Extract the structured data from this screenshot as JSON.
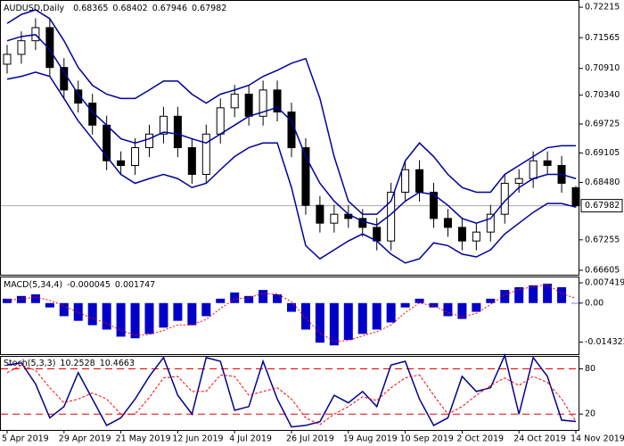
{
  "chart_data": [
    {
      "type": "candlestick",
      "title": "AUDUSD,Daily",
      "categories": [
        "5 Apr 2019",
        null,
        null,
        null,
        "29 Apr 2019",
        null,
        null,
        null,
        "21 May 2019",
        null,
        null,
        null,
        "12 Jun 2019",
        null,
        null,
        null,
        "4 Jul 2019",
        null,
        null,
        null,
        "26 Jul 2019",
        null,
        null,
        null,
        "19 Aug 2019",
        null,
        null,
        null,
        "10 Sep 2019",
        null,
        null,
        null,
        "2 Oct 2019",
        null,
        null,
        null,
        "24 Oct 2019",
        null,
        null,
        null,
        "14 Nov 2019"
      ],
      "open": [
        0.71,
        0.7121,
        0.715,
        0.7178,
        0.7093,
        0.7045,
        0.7017,
        0.697,
        0.6894,
        0.6884,
        0.6922,
        0.6951,
        0.6989,
        0.6922,
        0.6865,
        0.6951,
        0.7007,
        0.7036,
        0.6989,
        0.7045,
        0.6998,
        0.6922,
        0.6799,
        0.6761,
        0.678,
        0.6771,
        0.6752,
        0.6723,
        0.6827,
        0.6875,
        0.6827,
        0.6771,
        0.6752,
        0.6723,
        0.6742,
        0.678,
        0.6846,
        0.6856,
        0.6894,
        0.6884,
        0.68365
      ],
      "high": [
        0.7141,
        0.717,
        0.7198,
        0.7198,
        0.7113,
        0.7065,
        0.7037,
        0.699,
        0.6914,
        0.6942,
        0.6971,
        0.7009,
        0.7009,
        0.6942,
        0.6971,
        0.7027,
        0.7056,
        0.7056,
        0.7065,
        0.7065,
        0.7018,
        0.6942,
        0.6819,
        0.68,
        0.68,
        0.6791,
        0.6772,
        0.6847,
        0.6895,
        0.6895,
        0.6847,
        0.6791,
        0.6772,
        0.6762,
        0.68,
        0.6866,
        0.6876,
        0.6914,
        0.6914,
        0.6904,
        0.68402
      ],
      "low": [
        0.708,
        0.7101,
        0.713,
        0.7073,
        0.7025,
        0.6997,
        0.695,
        0.6874,
        0.6864,
        0.6864,
        0.6902,
        0.6931,
        0.6902,
        0.6845,
        0.6845,
        0.6931,
        0.6987,
        0.6969,
        0.6969,
        0.6978,
        0.6902,
        0.6779,
        0.6741,
        0.6741,
        0.6751,
        0.6732,
        0.6703,
        0.6703,
        0.6807,
        0.6807,
        0.6751,
        0.6732,
        0.6703,
        0.6703,
        0.6722,
        0.676,
        0.6826,
        0.6836,
        0.6864,
        0.6826,
        0.67946
      ],
      "close": [
        0.7121,
        0.715,
        0.7178,
        0.7093,
        0.7045,
        0.7017,
        0.697,
        0.6894,
        0.6884,
        0.6922,
        0.6951,
        0.6989,
        0.6922,
        0.6865,
        0.6951,
        0.7007,
        0.7036,
        0.6989,
        0.7045,
        0.6998,
        0.6922,
        0.6799,
        0.6761,
        0.678,
        0.6771,
        0.6752,
        0.6723,
        0.6827,
        0.6875,
        0.6827,
        0.6771,
        0.6752,
        0.6723,
        0.6742,
        0.678,
        0.6846,
        0.6856,
        0.6894,
        0.6884,
        0.6846,
        0.67982
      ],
      "up_color": "#ffffff",
      "down_color": "#000000",
      "series": [
        {
          "color": "#0000a0",
          "values": [
            0.7187,
            0.7206,
            0.7216,
            0.7197,
            0.715,
            0.7093,
            0.7055,
            0.7036,
            0.7027,
            0.7027,
            0.7045,
            0.7064,
            0.7064,
            0.7036,
            0.7017,
            0.7036,
            0.7045,
            0.7055,
            0.7074,
            0.7087,
            0.7102,
            0.7112,
            0.7027,
            0.6903,
            0.6808,
            0.678,
            0.678,
            0.6808,
            0.6894,
            0.6932,
            0.6903,
            0.6865,
            0.6837,
            0.6827,
            0.6827,
            0.6865,
            0.6884,
            0.6903,
            0.6922,
            0.6926,
            0.6926
          ]
        },
        {
          "color": "#0000a0",
          "values": [
            0.715,
            0.7159,
            0.7163,
            0.7131,
            0.7083,
            0.7036,
            0.6998,
            0.697,
            0.6941,
            0.6932,
            0.6941,
            0.6955,
            0.6951,
            0.6941,
            0.6932,
            0.6951,
            0.697,
            0.6989,
            0.6998,
            0.7008,
            0.6979,
            0.6903,
            0.6846,
            0.6808,
            0.678,
            0.6765,
            0.6757,
            0.678,
            0.6808,
            0.6827,
            0.6822,
            0.6799,
            0.6771,
            0.6761,
            0.6771,
            0.6808,
            0.6837,
            0.6856,
            0.6865,
            0.6865,
            0.6856
          ]
        },
        {
          "color": "#0000a0",
          "values": [
            0.7068,
            0.7074,
            0.7083,
            0.7074,
            0.7027,
            0.6979,
            0.6941,
            0.6903,
            0.6865,
            0.6846,
            0.6856,
            0.6865,
            0.6856,
            0.6837,
            0.6846,
            0.6875,
            0.6903,
            0.6922,
            0.6932,
            0.6932,
            0.6837,
            0.6713,
            0.6685,
            0.6704,
            0.6723,
            0.6738,
            0.6723,
            0.6695,
            0.6676,
            0.6685,
            0.6719,
            0.6713,
            0.6695,
            0.6689,
            0.6704,
            0.6738,
            0.6761,
            0.6784,
            0.6803,
            0.6803,
            0.6795
          ]
        }
      ],
      "ylim": [
        0.6651,
        0.7235
      ],
      "yticks": [
        0.72215,
        0.71565,
        {
          "value": 0.7091,
          "label": "0.70910"
        },
        {
          "value": 0.7034,
          "label": "0.70340"
        },
        0.69725,
        0.69105,
        {
          "value": 0.6848,
          "label": "0.68480"
        },
        0.67255,
        0.66605
      ]
    },
    {
      "type": "bar",
      "title": "MACD(5,34,4)",
      "color": "#0000c8",
      "values": [
        0.0016,
        0.0026,
        0.0032,
        -0.0016,
        -0.0048,
        -0.0065,
        -0.0081,
        -0.0097,
        -0.0123,
        -0.0129,
        -0.0113,
        -0.009,
        -0.0065,
        -0.0081,
        -0.0048,
        0.0016,
        0.0039,
        0.0026,
        0.0048,
        0.0032,
        -0.0032,
        -0.0097,
        -0.0145,
        -0.0155,
        -0.0135,
        -0.0113,
        -0.0097,
        -0.0071,
        -0.0016,
        0.0016,
        -0.0016,
        -0.0048,
        -0.0058,
        -0.0032,
        0.0016,
        0.0048,
        0.0058,
        0.0065,
        0.0071,
        0.0058,
        -4.5e-05
      ],
      "series": [
        {
          "color": "#ff0000",
          "values": [
            0.001,
            0.0015,
            0.0022,
            0.001,
            -0.001,
            -0.0035,
            -0.0055,
            -0.0075,
            -0.01,
            -0.0118,
            -0.0115,
            -0.01,
            -0.008,
            -0.008,
            -0.006,
            -0.002,
            0.0015,
            0.002,
            0.0035,
            0.0033,
            0.0005,
            -0.0055,
            -0.011,
            -0.014,
            -0.0137,
            -0.012,
            -0.0105,
            -0.008,
            -0.0035,
            0.0,
            -0.001,
            -0.0035,
            -0.005,
            -0.0038,
            -0.0005,
            0.003,
            0.005,
            0.006,
            0.0068,
            0.0035,
            0.001747
          ]
        }
      ],
      "ylim": [
        -0.0187,
        0.0094
      ],
      "yticks": [
        0.007419,
        {
          "value": 0,
          "label": "0.00"
        },
        -0.014322
      ]
    },
    {
      "type": "line",
      "title": "Stoch(5,3,3)",
      "series": [
        {
          "color": "#00008b",
          "values": [
            85,
            88,
            60,
            15,
            30,
            75,
            40,
            5,
            15,
            40,
            70,
            95,
            45,
            20,
            95,
            90,
            25,
            30,
            90,
            40,
            3,
            5,
            10,
            45,
            35,
            50,
            30,
            85,
            90,
            40,
            5,
            15,
            70,
            50,
            55,
            98,
            20,
            95,
            70,
            12,
            10.2528
          ]
        },
        {
          "color": "#ff0000",
          "values": [
            75,
            85,
            78,
            55,
            35,
            40,
            48,
            40,
            20,
            20,
            42,
            68,
            70,
            50,
            50,
            72,
            70,
            45,
            50,
            55,
            40,
            15,
            6,
            20,
            30,
            43,
            38,
            55,
            68,
            72,
            45,
            20,
            30,
            45,
            58,
            68,
            58,
            70,
            62,
            40,
            10.4663
          ]
        }
      ],
      "level_color": "#e00000",
      "ylim": [
        -1,
        96
      ],
      "yticks": [
        80,
        20
      ]
    }
  ]
}
